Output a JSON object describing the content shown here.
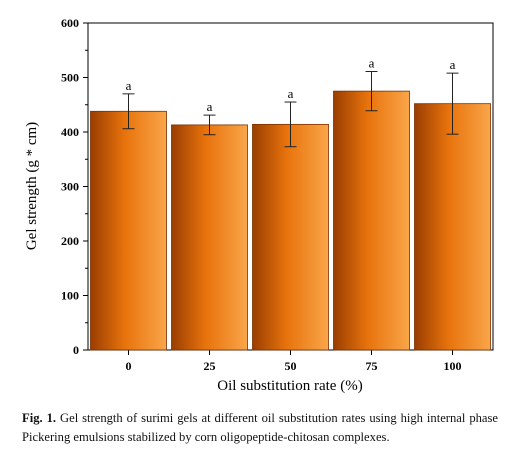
{
  "chart_data": {
    "type": "bar",
    "categories": [
      "0",
      "25",
      "50",
      "75",
      "100"
    ],
    "values": [
      438,
      413,
      414,
      475,
      452
    ],
    "errors": [
      32,
      18,
      41,
      36,
      56
    ],
    "significance_labels": [
      "a",
      "a",
      "a",
      "a",
      "a"
    ],
    "xlabel": "Oil substitution rate (%)",
    "ylabel": "Gel strength (g * cm)",
    "ylim": [
      0,
      600
    ],
    "yticks": [
      "0",
      "100",
      "200",
      "300",
      "400",
      "500",
      "600"
    ],
    "grid": false,
    "legend": "none",
    "bar_color": "#e8730c",
    "bar_highlight": "#f9a64a",
    "bar_shadow": "#9a3e02"
  },
  "caption": {
    "label": "Fig. 1.",
    "text": "Gel strength of surimi gels at different oil substitution rates using high internal phase Pickering emulsions stabilized by corn oligopeptide-chitosan complexes."
  }
}
